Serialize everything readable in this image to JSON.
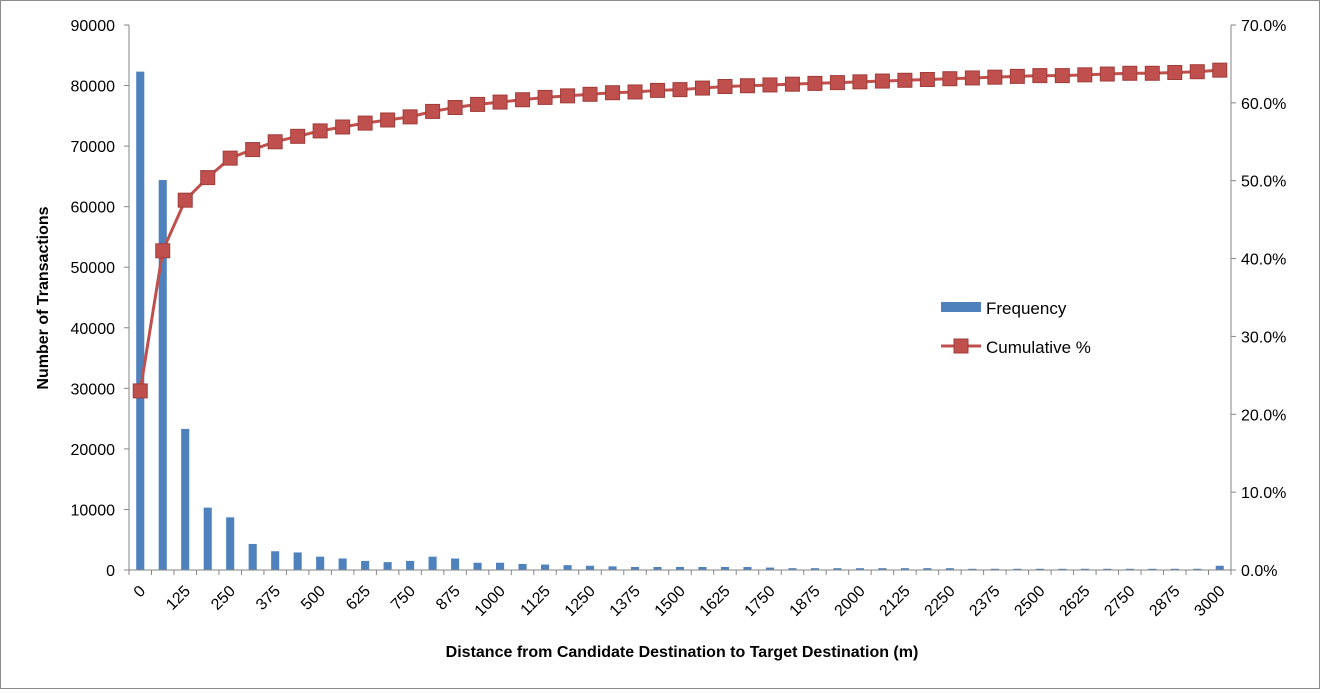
{
  "chart_data": {
    "type": "bar",
    "title": "",
    "xlabel": "Distance from Candidate Destination to Target Destination (m)",
    "ylabel": "Number of Transactions",
    "y2label": "",
    "ylim": [
      0,
      90000
    ],
    "y2lim": [
      0,
      0.7
    ],
    "yticks": [
      "0",
      "10000",
      "20000",
      "30000",
      "40000",
      "50000",
      "60000",
      "70000",
      "80000",
      "90000"
    ],
    "y2ticks": [
      "0.0%",
      "10.0%",
      "20.0%",
      "30.0%",
      "40.0%",
      "50.0%",
      "60.0%",
      "70.0%"
    ],
    "x": [
      0,
      62.5,
      125,
      187.5,
      250,
      312.5,
      375,
      437.5,
      500,
      562.5,
      625,
      687.5,
      750,
      812.5,
      875,
      937.5,
      1000,
      1062.5,
      1125,
      1187.5,
      1250,
      1312.5,
      1375,
      1437.5,
      1500,
      1562.5,
      1625,
      1687.5,
      1750,
      1812.5,
      1875,
      1937.5,
      2000,
      2062.5,
      2125,
      2187.5,
      2250,
      2312.5,
      2375,
      2437.5,
      2500,
      2562.5,
      2625,
      2687.5,
      2750,
      2812.5,
      2875,
      2937.5,
      3000
    ],
    "x_tick_labels": [
      "0",
      "125",
      "250",
      "375",
      "500",
      "625",
      "750",
      "875",
      "1000",
      "1125",
      "1250",
      "1375",
      "1500",
      "1625",
      "1750",
      "1875",
      "2000",
      "2125",
      "2250",
      "2375",
      "2500",
      "2625",
      "2750",
      "2875",
      "3000"
    ],
    "grid": false,
    "legend_position": "right-center",
    "series": [
      {
        "name": "Frequency",
        "type": "bar",
        "axis": "left",
        "color": "#4f81bd",
        "values": [
          82300,
          64400,
          23300,
          10300,
          8700,
          4300,
          3100,
          2900,
          2200,
          1900,
          1500,
          1300,
          1500,
          2200,
          1900,
          1200,
          1200,
          1000,
          900,
          800,
          700,
          600,
          500,
          500,
          500,
          500,
          500,
          500,
          400,
          300,
          300,
          300,
          300,
          300,
          300,
          300,
          300,
          200,
          200,
          200,
          200,
          200,
          200,
          200,
          200,
          200,
          200,
          200,
          700
        ]
      },
      {
        "name": "Cumulative %",
        "type": "line",
        "axis": "right",
        "color": "#c0504d",
        "values": [
          0.23,
          0.41,
          0.475,
          0.504,
          0.529,
          0.54,
          0.55,
          0.557,
          0.564,
          0.569,
          0.574,
          0.578,
          0.582,
          0.589,
          0.594,
          0.598,
          0.601,
          0.604,
          0.607,
          0.609,
          0.611,
          0.613,
          0.614,
          0.616,
          0.617,
          0.619,
          0.621,
          0.622,
          0.623,
          0.624,
          0.625,
          0.626,
          0.627,
          0.628,
          0.629,
          0.63,
          0.631,
          0.632,
          0.633,
          0.634,
          0.635,
          0.635,
          0.636,
          0.637,
          0.638,
          0.638,
          0.639,
          0.64,
          0.642
        ]
      }
    ]
  }
}
